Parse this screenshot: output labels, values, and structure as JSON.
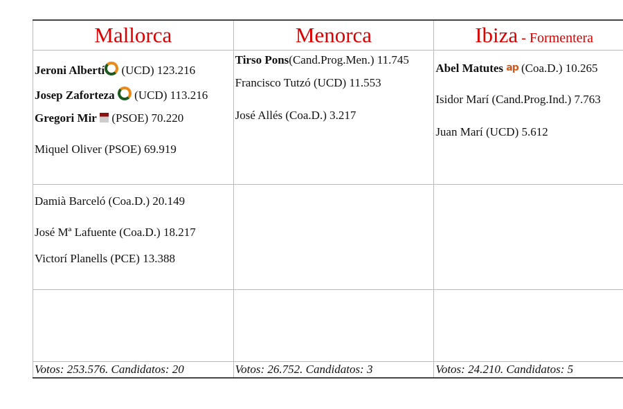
{
  "headers": {
    "mallorca": "Mallorca",
    "menorca": "Menorca",
    "ibiza": "Ibiza",
    "formentera": " - Formentera"
  },
  "mallorca": [
    {
      "name": "Jeroni Albertí",
      "party": " (UCD) 123.216",
      "icon": "ucd-logo-icon"
    },
    {
      "name": "Josep Zaforteza",
      "party": " (UCD) 113.216",
      "icon": "ucd-logo-icon"
    },
    {
      "name": "Gregori Mir",
      "party": " (PSOE) 70.220",
      "icon": "psoe-logo-icon"
    },
    {
      "text": "Miquel Oliver (PSOE) 69.919"
    },
    {
      "text": "Damià Barceló (Coa.D.) 20.149"
    },
    {
      "text": "José Mª Lafuente (Coa.D.) 18.217"
    },
    {
      "text": "Victorí Planells (PCE) 13.388"
    }
  ],
  "menorca": [
    {
      "name": "Tirso Pons",
      "party": "(Cand.Prog.Men.) 11.745"
    },
    {
      "text": "Francisco Tutzó (UCD)  11.553"
    },
    {
      "text": "José Allés (Coa.D.)  3.217"
    }
  ],
  "ibiza": [
    {
      "name": "Abel Matutes",
      "party": " (Coa.D.) 10.265",
      "icon": "ap-logo-icon",
      "icon_text": "ap"
    },
    {
      "text": "Isidor Marí (Cand.Prog.Ind.) 7.763"
    },
    {
      "text": "Juan Marí  (UCD)  5.612"
    }
  ],
  "footer": {
    "mallorca": "Votos: 253.576. Candidatos: 20",
    "menorca": "Votos: 26.752. Candidatos: 3",
    "ibiza": "Votos:  24.210. Candidatos: 5"
  },
  "colors": {
    "heading": "#dd0000",
    "ucd_orange": "#e88a1a",
    "ucd_green": "#1d5a1d",
    "ap": "#d2571a",
    "psoe": "#8b1111"
  }
}
